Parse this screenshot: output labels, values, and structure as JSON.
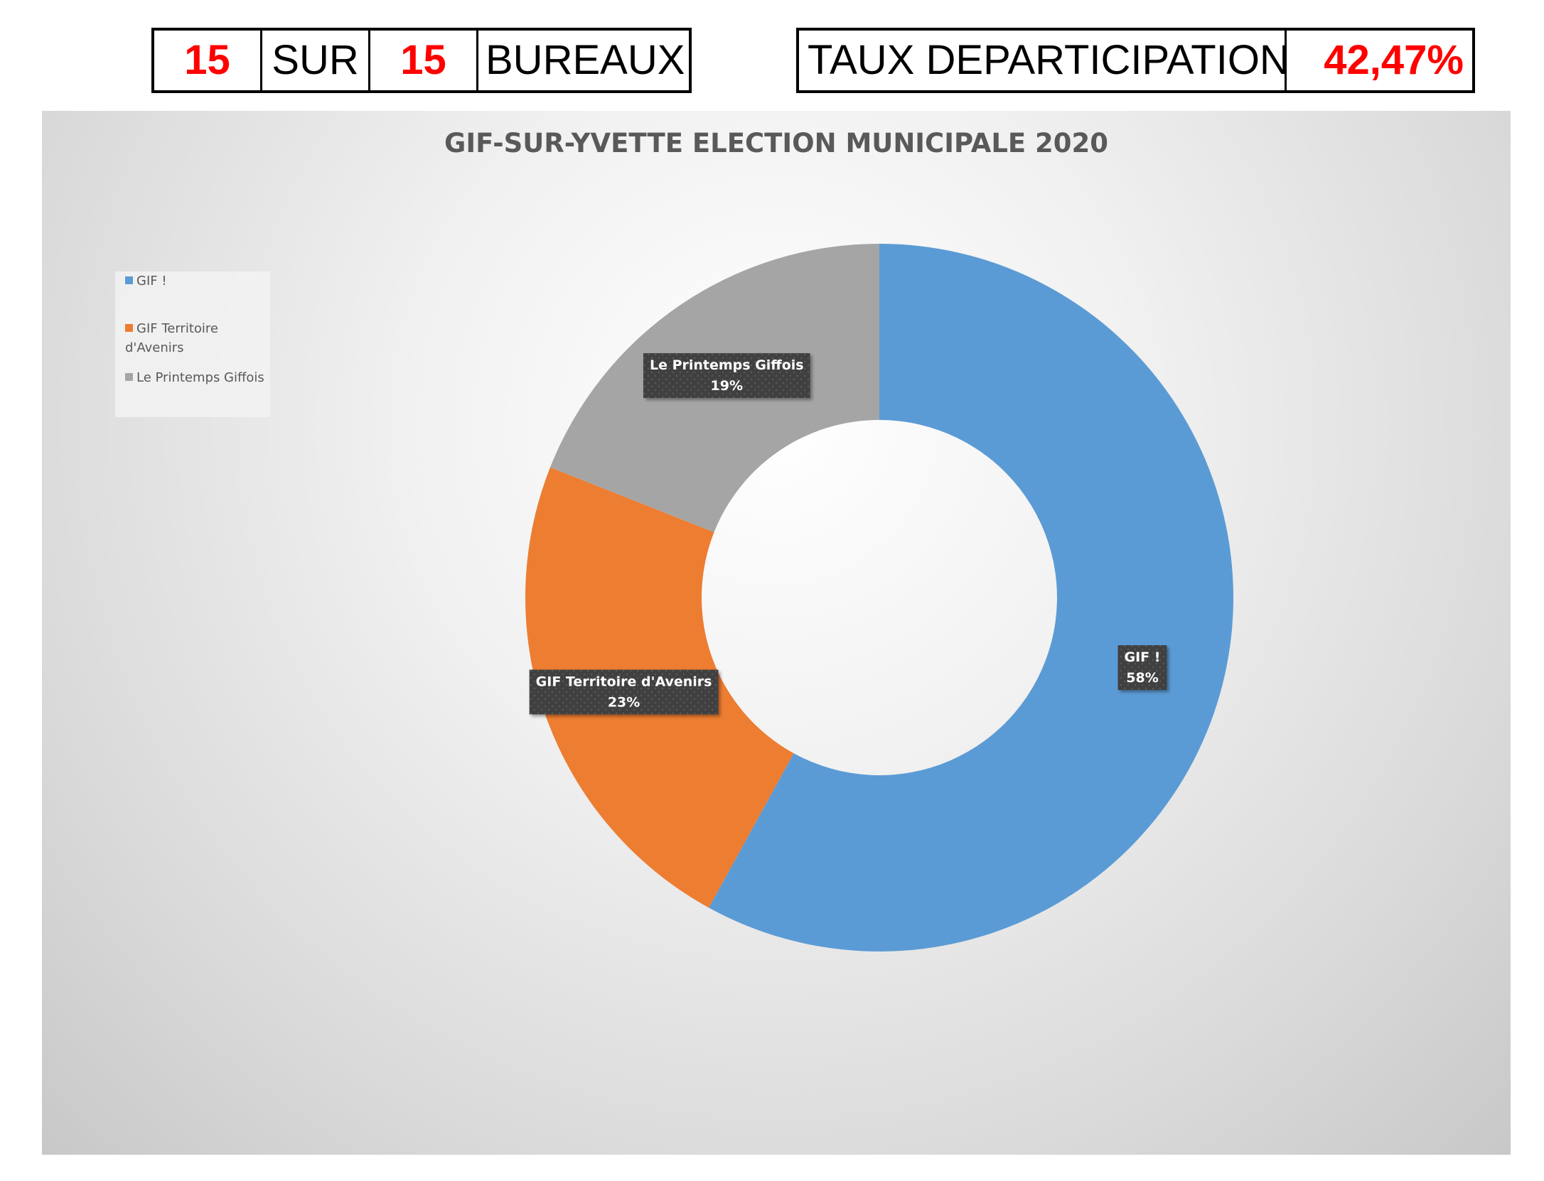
{
  "header": {
    "counted": "15",
    "sur": "SUR",
    "total": "15",
    "bureaux": "BUREAUX",
    "taux_label": "TAUX DEPARTICIPATION",
    "taux_value": "42,47%"
  },
  "colors": {
    "gif": "#5b9bd5",
    "territoire": "#ed7d31",
    "printemps": "#a5a5a5",
    "highlight": "#ff0000"
  },
  "chart_data": {
    "type": "pie",
    "subtype": "doughnut",
    "title": "GIF-SUR-YVETTE ELECTION MUNICIPALE 2020",
    "legend_position": "left",
    "slices": [
      {
        "label": "GIF !",
        "legend_label": "GIF !",
        "value": 58,
        "value_label": "58%",
        "color": "#5b9bd5"
      },
      {
        "label": "GIF Territoire d'Avenirs",
        "legend_label": "GIF Territoire\nd'Avenirs",
        "value": 23,
        "value_label": "23%",
        "color": "#ed7d31"
      },
      {
        "label": "Le Printemps Giffois",
        "legend_label": "Le Printemps Giffois",
        "value": 19,
        "value_label": "19%",
        "color": "#a5a5a5"
      }
    ]
  }
}
